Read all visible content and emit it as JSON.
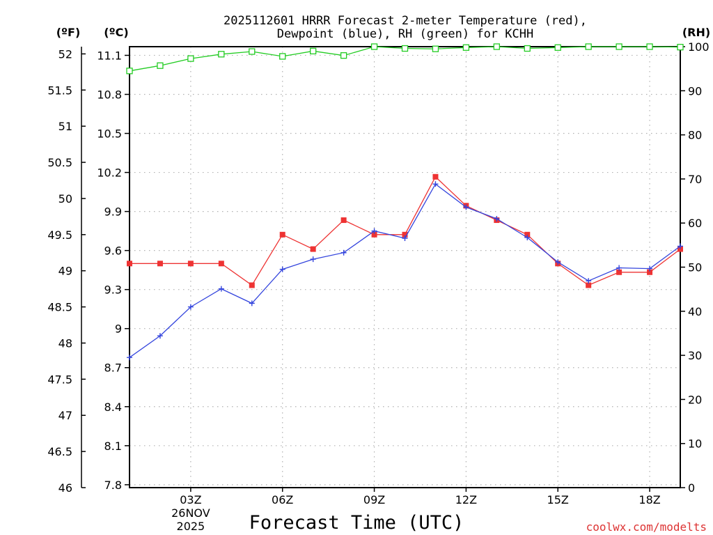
{
  "chart_data": {
    "type": "line",
    "title_line1": "2025112601 HRRR Forecast 2-meter Temperature (red),",
    "title_line2": "Dewpoint (blue), RH (green) for KCHH",
    "xlabel": "Forecast Time (UTC)",
    "credit": "coolwx.com/modelts",
    "unit_f": "(ºF)",
    "unit_c": "(ºC)",
    "unit_rh": "(RH)",
    "x_range": [
      1,
      19
    ],
    "x_ticks": [
      {
        "x": 3,
        "label": "03Z",
        "sub1": "26NOV",
        "sub2": "2025"
      },
      {
        "x": 6,
        "label": "06Z"
      },
      {
        "x": 9,
        "label": "09Z"
      },
      {
        "x": 12,
        "label": "12Z"
      },
      {
        "x": 15,
        "label": "15Z"
      },
      {
        "x": 18,
        "label": "18Z"
      }
    ],
    "y_f_range": [
      46,
      52.1
    ],
    "y_f_ticks": [
      "46",
      "46.5",
      "47",
      "47.5",
      "48",
      "48.5",
      "49",
      "49.5",
      "50",
      "50.5",
      "51",
      "51.5",
      "52"
    ],
    "y_c_ticks": [
      "7.8",
      "8.1",
      "8.4",
      "8.7",
      "9",
      "9.3",
      "9.6",
      "9.9",
      "10.2",
      "10.5",
      "10.8",
      "11.1"
    ],
    "y_rh_range": [
      0,
      100
    ],
    "y_rh_ticks": [
      "0",
      "10",
      "20",
      "30",
      "40",
      "50",
      "60",
      "70",
      "80",
      "90",
      "100"
    ],
    "x": [
      1,
      2,
      3,
      4,
      5,
      6,
      7,
      8,
      9,
      10,
      11,
      12,
      13,
      14,
      15,
      16,
      17,
      18,
      19
    ],
    "series": [
      {
        "name": "Temperature",
        "axis": "F",
        "color": "#ee3333",
        "marker": "filled-square",
        "values": [
          49.1,
          49.1,
          49.1,
          49.1,
          48.8,
          49.5,
          49.3,
          49.7,
          49.5,
          49.5,
          50.3,
          49.9,
          49.7,
          49.5,
          49.1,
          48.8,
          48.98,
          48.98,
          49.3
        ]
      },
      {
        "name": "Dewpoint",
        "axis": "F",
        "color": "#3344dd",
        "marker": "plus",
        "values": [
          47.8,
          48.1,
          48.5,
          48.75,
          48.55,
          49.02,
          49.16,
          49.25,
          49.55,
          49.45,
          50.2,
          49.88,
          49.72,
          49.46,
          49.12,
          48.86,
          49.04,
          49.03,
          49.34
        ]
      },
      {
        "name": "RH",
        "axis": "RH",
        "color": "#22cc22",
        "marker": "open-square",
        "values": [
          94.5,
          95.7,
          97.3,
          98.3,
          98.9,
          97.8,
          99.0,
          98.0,
          100,
          99.6,
          99.5,
          99.8,
          100,
          99.6,
          99.8,
          100,
          100,
          100,
          99.9
        ]
      }
    ]
  }
}
